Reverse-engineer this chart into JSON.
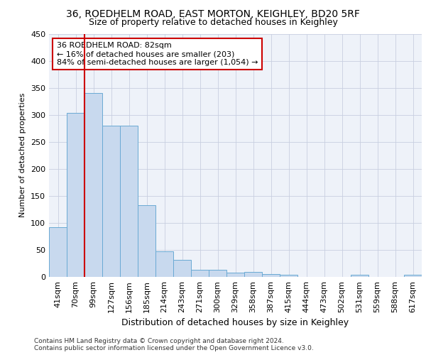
{
  "title1": "36, ROEDHELM ROAD, EAST MORTON, KEIGHLEY, BD20 5RF",
  "title2": "Size of property relative to detached houses in Keighley",
  "xlabel": "Distribution of detached houses by size in Keighley",
  "ylabel": "Number of detached properties",
  "categories": [
    "41sqm",
    "70sqm",
    "99sqm",
    "127sqm",
    "156sqm",
    "185sqm",
    "214sqm",
    "243sqm",
    "271sqm",
    "300sqm",
    "329sqm",
    "358sqm",
    "387sqm",
    "415sqm",
    "444sqm",
    "473sqm",
    "502sqm",
    "531sqm",
    "559sqm",
    "588sqm",
    "617sqm"
  ],
  "values": [
    92,
    303,
    340,
    280,
    280,
    133,
    47,
    31,
    13,
    13,
    8,
    9,
    5,
    4,
    0,
    0,
    0,
    4,
    0,
    0,
    4
  ],
  "bar_color": "#c8d9ee",
  "bar_edge_color": "#6aaad4",
  "vline_x": 1.5,
  "vline_color": "#cc0000",
  "annotation_text": "36 ROEDHELM ROAD: 82sqm\n← 16% of detached houses are smaller (203)\n84% of semi-detached houses are larger (1,054) →",
  "annotation_box_color": "#cc0000",
  "ylim": [
    0,
    450
  ],
  "yticks": [
    0,
    50,
    100,
    150,
    200,
    250,
    300,
    350,
    400,
    450
  ],
  "background_color": "#eef2f9",
  "footer_text": "Contains HM Land Registry data © Crown copyright and database right 2024.\nContains public sector information licensed under the Open Government Licence v3.0.",
  "title1_fontsize": 10,
  "title2_fontsize": 9,
  "xlabel_fontsize": 9,
  "ylabel_fontsize": 8,
  "tick_fontsize": 8,
  "annotation_fontsize": 8,
  "footer_fontsize": 6.5,
  "grid_color": "#c8cfe0"
}
